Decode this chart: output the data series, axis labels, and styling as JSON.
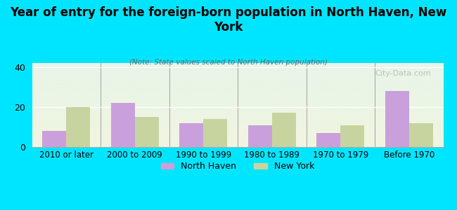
{
  "title": "Year of entry for the foreign-born population in North Haven, New\nYork",
  "subtitle": "(Note: State values scaled to North Haven population)",
  "categories": [
    "2010 or later",
    "2000 to 2009",
    "1990 to 1999",
    "1980 to 1989",
    "1970 to 1979",
    "Before 1970"
  ],
  "north_haven": [
    8,
    22,
    12,
    11,
    7,
    28
  ],
  "new_york": [
    20,
    15,
    14,
    17,
    11,
    12
  ],
  "north_haven_color": "#c9a0dc",
  "new_york_color": "#c8d4a0",
  "ylim": [
    0,
    42
  ],
  "yticks": [
    0,
    20,
    40
  ],
  "bar_width": 0.35,
  "bg_color": "#00e5ff",
  "watermark": "City-Data.com"
}
